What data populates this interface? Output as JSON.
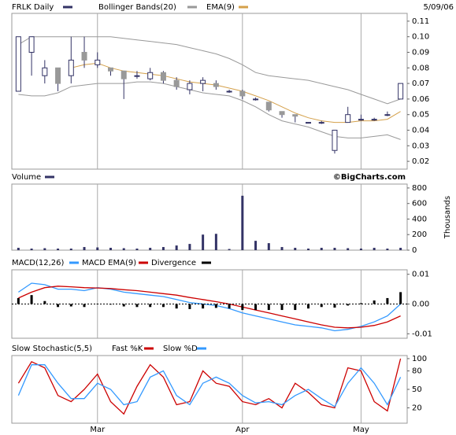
{
  "chart_data": [
    {
      "type": "candlestick",
      "title": "FRLK Daily",
      "date": "5/09/06",
      "color": "#333366",
      "open": [
        0.065,
        0.09,
        0.075,
        0.08,
        0.075,
        0.09,
        0.082,
        0.08,
        0.078,
        0.075,
        0.073,
        0.077,
        0.072,
        0.066,
        0.07,
        0.07,
        0.065,
        0.065,
        0.06,
        0.058,
        0.052,
        0.05,
        0.045,
        0.045,
        0.027,
        0.045,
        0.047,
        0.047,
        0.05,
        0.06
      ],
      "high": [
        0.1,
        0.1,
        0.085,
        0.08,
        0.1,
        0.1,
        0.09,
        0.08,
        0.078,
        0.078,
        0.08,
        0.078,
        0.074,
        0.072,
        0.074,
        0.072,
        0.066,
        0.066,
        0.061,
        0.058,
        0.052,
        0.05,
        0.045,
        0.046,
        0.04,
        0.055,
        0.05,
        0.048,
        0.052,
        0.07
      ],
      "low": [
        0.065,
        0.075,
        0.07,
        0.065,
        0.07,
        0.08,
        0.08,
        0.075,
        0.06,
        0.073,
        0.072,
        0.07,
        0.066,
        0.063,
        0.065,
        0.066,
        0.064,
        0.06,
        0.059,
        0.052,
        0.048,
        0.045,
        0.045,
        0.044,
        0.025,
        0.045,
        0.046,
        0.046,
        0.049,
        0.06
      ],
      "close": [
        0.1,
        0.1,
        0.08,
        0.07,
        0.085,
        0.085,
        0.085,
        0.078,
        0.073,
        0.075,
        0.077,
        0.072,
        0.068,
        0.07,
        0.072,
        0.068,
        0.065,
        0.062,
        0.06,
        0.053,
        0.05,
        0.049,
        0.045,
        0.045,
        0.04,
        0.05,
        0.047,
        0.047,
        0.05,
        0.07
      ],
      "series": [
        {
          "name": "Bollinger Bands(20)",
          "color": "#999999",
          "upper": [
            0.095,
            0.1,
            0.1,
            0.1,
            0.1,
            0.1,
            0.1,
            0.1,
            0.099,
            0.098,
            0.097,
            0.096,
            0.095,
            0.093,
            0.091,
            0.089,
            0.086,
            0.082,
            0.077,
            0.075,
            0.074,
            0.073,
            0.072,
            0.07,
            0.068,
            0.066,
            0.063,
            0.06,
            0.057,
            0.06
          ],
          "lower": [
            0.063,
            0.062,
            0.062,
            0.064,
            0.068,
            0.069,
            0.07,
            0.07,
            0.07,
            0.071,
            0.071,
            0.07,
            0.068,
            0.066,
            0.064,
            0.063,
            0.062,
            0.059,
            0.055,
            0.05,
            0.046,
            0.044,
            0.042,
            0.039,
            0.036,
            0.035,
            0.035,
            0.036,
            0.037,
            0.034
          ]
        },
        {
          "name": "EMA(9)",
          "color": "#d4a04a",
          "values": [
            null,
            null,
            null,
            null,
            0.08,
            0.082,
            0.083,
            0.08,
            0.078,
            0.077,
            0.076,
            0.075,
            0.073,
            0.071,
            0.07,
            0.069,
            0.067,
            0.065,
            0.062,
            0.059,
            0.055,
            0.051,
            0.048,
            0.046,
            0.045,
            0.045,
            0.046,
            0.046,
            0.047,
            0.052
          ]
        }
      ],
      "ylim": [
        0.015,
        0.115
      ],
      "yticks": [
        0.02,
        0.03,
        0.04,
        0.05,
        0.06,
        0.07,
        0.08,
        0.09,
        {
          "value": 0.1,
          "label": "0.10"
        },
        0.11
      ]
    },
    {
      "type": "bar",
      "source": "©BigCharts.com",
      "ylabel": "Thousands",
      "series": [
        {
          "name": "Volume",
          "color": "#333366",
          "values": [
            30,
            20,
            25,
            20,
            20,
            40,
            35,
            30,
            25,
            20,
            30,
            40,
            60,
            80,
            200,
            210,
            15,
            700,
            120,
            90,
            40,
            30,
            20,
            30,
            30,
            25,
            20,
            30,
            20,
            30
          ]
        }
      ],
      "ylim": [
        0,
        850
      ],
      "yticks": [
        0,
        200,
        400,
        600,
        800
      ]
    },
    {
      "type": "line",
      "series": [
        {
          "name": "MACD(12,26)",
          "color": "#3399ff",
          "type": "line",
          "values": [
            0.004,
            0.007,
            0.0065,
            0.005,
            0.005,
            0.0045,
            0.0055,
            0.005,
            0.004,
            0.0035,
            0.003,
            0.0025,
            0.0015,
            0.0005,
            0,
            -0.0005,
            -0.0015,
            -0.003,
            -0.004,
            -0.005,
            -0.006,
            -0.007,
            -0.0075,
            -0.008,
            -0.009,
            -0.0085,
            -0.0075,
            -0.006,
            -0.004,
            0
          ]
        },
        {
          "name": "MACD EMA(9)",
          "color": "#cc0000",
          "type": "line",
          "values": [
            0.002,
            0.004,
            0.0055,
            0.006,
            0.0058,
            0.0055,
            0.0054,
            0.0052,
            0.0048,
            0.0045,
            0.004,
            0.0035,
            0.003,
            0.0022,
            0.0015,
            0.0008,
            0,
            -0.001,
            -0.002,
            -0.003,
            -0.004,
            -0.005,
            -0.006,
            -0.007,
            -0.0078,
            -0.008,
            -0.0078,
            -0.0072,
            -0.006,
            -0.004
          ]
        },
        {
          "name": "Divergence",
          "color": "#000000",
          "type": "bar",
          "values": [
            0.002,
            0.003,
            0.001,
            -0.001,
            -0.0008,
            -0.001,
            0.0001,
            -0.0002,
            -0.0008,
            -0.001,
            -0.001,
            -0.001,
            -0.0015,
            -0.0017,
            -0.0015,
            -0.0013,
            -0.0015,
            -0.002,
            -0.002,
            -0.002,
            -0.002,
            -0.002,
            -0.0015,
            -0.001,
            -0.0012,
            -0.0005,
            0.0003,
            0.0012,
            0.002,
            0.004
          ]
        }
      ],
      "ylim": [
        -0.0115,
        0.0115
      ],
      "yticks": [
        {
          "value": -0.01,
          "label": "-0.01"
        },
        {
          "value": 0,
          "label": "0.00"
        },
        0.01
      ]
    },
    {
      "type": "line",
      "title": "Slow Stochastic(5,5)",
      "categories": [
        null,
        null,
        null,
        null,
        null,
        null,
        "Mar",
        null,
        null,
        null,
        null,
        null,
        null,
        null,
        null,
        null,
        null,
        "Apr",
        null,
        null,
        null,
        null,
        null,
        null,
        null,
        null,
        "May",
        null,
        null,
        null
      ],
      "series": [
        {
          "name": "Fast %K",
          "color": "#cc0000",
          "values": [
            60,
            95,
            85,
            40,
            30,
            50,
            75,
            30,
            10,
            55,
            90,
            70,
            25,
            30,
            80,
            60,
            55,
            30,
            25,
            35,
            20,
            60,
            45,
            25,
            20,
            85,
            80,
            30,
            15,
            100
          ]
        },
        {
          "name": "Slow %D",
          "color": "#3399ff",
          "values": [
            40,
            90,
            90,
            60,
            35,
            35,
            60,
            50,
            25,
            30,
            70,
            80,
            40,
            25,
            60,
            70,
            60,
            40,
            28,
            30,
            25,
            40,
            50,
            35,
            22,
            60,
            85,
            60,
            25,
            70
          ]
        }
      ],
      "ylim": [
        -5,
        105
      ],
      "yticks": [
        20,
        50,
        80,
        100
      ]
    }
  ]
}
